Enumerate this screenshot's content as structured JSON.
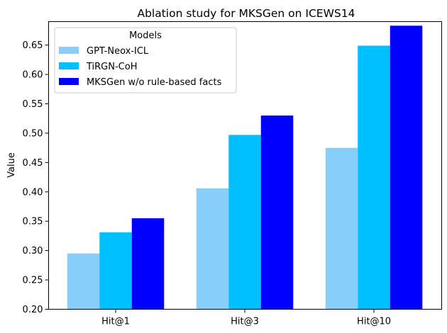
{
  "chart_data": {
    "type": "bar",
    "title": "Ablation study for MKSGen on ICEWS14",
    "xlabel": "",
    "ylabel": "Value",
    "categories": [
      "Hit@1",
      "Hit@3",
      "Hit@10"
    ],
    "ylim": [
      0.2,
      0.69
    ],
    "yticks": [
      "0.20",
      "0.25",
      "0.30",
      "0.35",
      "0.40",
      "0.45",
      "0.50",
      "0.55",
      "0.60",
      "0.65"
    ],
    "grid": false,
    "legend": {
      "title": "Models",
      "placement": "top-left"
    },
    "series": [
      {
        "name": "GPT-Neox-ICL",
        "color": "#87CEFA",
        "values": [
          0.295,
          0.406,
          0.475
        ]
      },
      {
        "name": "TiRGN-CoH",
        "color": "#00BFFF",
        "values": [
          0.331,
          0.497,
          0.649
        ]
      },
      {
        "name": "MKSGen w/o rule-based facts",
        "color": "#0000FF",
        "values": [
          0.355,
          0.53,
          0.683
        ]
      }
    ]
  }
}
